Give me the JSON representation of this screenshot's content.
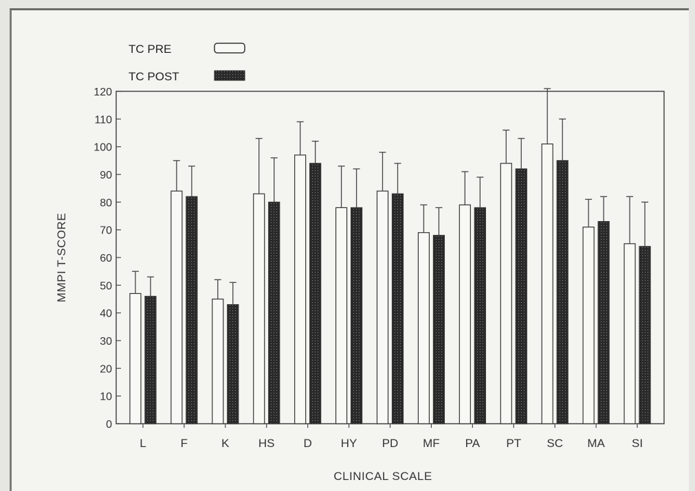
{
  "chart_data": {
    "type": "bar",
    "title": "",
    "xlabel": "CLINICAL SCALE",
    "ylabel": "MMPI T-SCORE",
    "ylim": [
      0,
      120
    ],
    "yticks": [
      0,
      10,
      20,
      30,
      40,
      50,
      60,
      70,
      80,
      90,
      100,
      110,
      120
    ],
    "grid": false,
    "legend_position": "top-left",
    "categories": [
      "L",
      "F",
      "K",
      "HS",
      "D",
      "HY",
      "PD",
      "MF",
      "PA",
      "PT",
      "SC",
      "MA",
      "SI"
    ],
    "series": [
      {
        "name": "TC PRE",
        "color": "#f8f8f4",
        "values": [
          47,
          84,
          45,
          83,
          97,
          78,
          84,
          69,
          79,
          94,
          101,
          71,
          65
        ],
        "errors": [
          8,
          11,
          7,
          20,
          12,
          15,
          14,
          10,
          12,
          12,
          20,
          10,
          17
        ]
      },
      {
        "name": "TC POST",
        "color": "#2a2a2a",
        "values": [
          46,
          82,
          43,
          80,
          94,
          78,
          83,
          68,
          78,
          92,
          95,
          73,
          64
        ],
        "errors": [
          7,
          11,
          8,
          16,
          8,
          14,
          11,
          10,
          11,
          11,
          15,
          9,
          16
        ]
      }
    ]
  }
}
